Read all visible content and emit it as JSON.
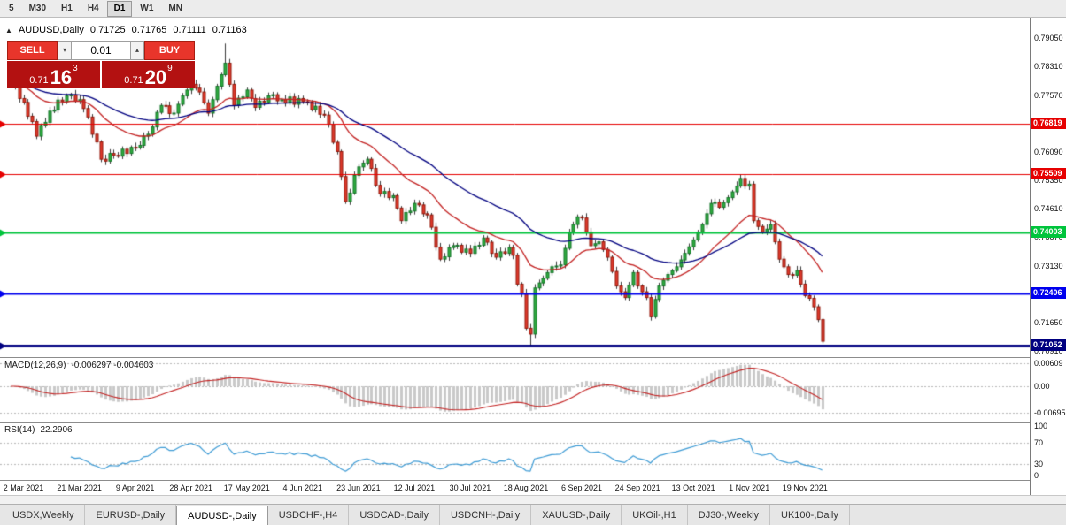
{
  "toolbar": {
    "periods": [
      "5",
      "M30",
      "H1",
      "H4",
      "D1",
      "W1",
      "MN"
    ],
    "active": "D1"
  },
  "chart": {
    "header": {
      "collapse_icon": "▲",
      "symbol": "AUDUSD,Daily",
      "open": "0.71725",
      "high": "0.71765",
      "low": "0.71111",
      "close": "0.71163"
    },
    "trade_panel": {
      "sell_label": "SELL",
      "buy_label": "BUY",
      "volume": "0.01",
      "bid_prefix": "0.71",
      "bid_big": "16",
      "bid_sup": "3",
      "ask_prefix": "0.71",
      "ask_big": "20",
      "ask_sup": "9"
    }
  },
  "chart_data": {
    "type": "candlestick",
    "symbol": "AUDUSD",
    "timeframe": "Daily",
    "ohlc_display": {
      "open": 0.71725,
      "high": 0.71765,
      "low": 0.71111,
      "close": 0.71163
    },
    "price_range": {
      "top": 0.794,
      "bottom": 0.7075
    },
    "price_axis_ticks": [
      "0.79050",
      "0.78310",
      "0.77570",
      "0.76830",
      "0.76090",
      "0.75350",
      "0.74610",
      "0.73870",
      "0.73130",
      "0.72390",
      "0.71650",
      "0.70910"
    ],
    "closes": [
      0.779,
      0.7779,
      0.7748,
      0.7738,
      0.7702,
      0.7688,
      0.765,
      0.7678,
      0.7686,
      0.7715,
      0.7718,
      0.7744,
      0.774,
      0.7755,
      0.7758,
      0.7741,
      0.7745,
      0.7722,
      0.77,
      0.7655,
      0.7635,
      0.759,
      0.7585,
      0.7605,
      0.76,
      0.7598,
      0.7616,
      0.7605,
      0.7621,
      0.762,
      0.7626,
      0.765,
      0.7655,
      0.7674,
      0.7712,
      0.773,
      0.7729,
      0.7709,
      0.771,
      0.7733,
      0.7755,
      0.777,
      0.7785,
      0.7775,
      0.7765,
      0.7737,
      0.771,
      0.7745,
      0.778,
      0.781,
      0.784,
      0.7785,
      0.773,
      0.7749,
      0.7752,
      0.777,
      0.7748,
      0.7725,
      0.7741,
      0.7738,
      0.7755,
      0.7758,
      0.7742,
      0.7745,
      0.7736,
      0.7752,
      0.7733,
      0.7748,
      0.774,
      0.7739,
      0.7719,
      0.7728,
      0.7707,
      0.7705,
      0.7681,
      0.7634,
      0.761,
      0.7545,
      0.748,
      0.7502,
      0.7548,
      0.757,
      0.758,
      0.759,
      0.7566,
      0.7522,
      0.75,
      0.7506,
      0.749,
      0.7495,
      0.7463,
      0.743,
      0.7451,
      0.7455,
      0.7475,
      0.7471,
      0.7448,
      0.7445,
      0.7413,
      0.7361,
      0.733,
      0.7336,
      0.736,
      0.7365,
      0.7366,
      0.7348,
      0.7356,
      0.7345,
      0.7364,
      0.7366,
      0.7385,
      0.7374,
      0.7345,
      0.7335,
      0.7349,
      0.7345,
      0.736,
      0.734,
      0.7265,
      0.724,
      0.715,
      0.7135,
      0.7255,
      0.7268,
      0.728,
      0.7295,
      0.731,
      0.7312,
      0.7315,
      0.7358,
      0.74,
      0.742,
      0.744,
      0.7437,
      0.74,
      0.7365,
      0.737,
      0.7375,
      0.7355,
      0.7335,
      0.7298,
      0.726,
      0.7245,
      0.723,
      0.7262,
      0.7295,
      0.726,
      0.7245,
      0.723,
      0.718,
      0.7225,
      0.726,
      0.7275,
      0.729,
      0.73,
      0.731,
      0.7328,
      0.7345,
      0.7362,
      0.738,
      0.74,
      0.742,
      0.7448,
      0.7475,
      0.7478,
      0.7465,
      0.7477,
      0.749,
      0.7505,
      0.752,
      0.754,
      0.752,
      0.7525,
      0.743,
      0.7415,
      0.74,
      0.7408,
      0.742,
      0.7375,
      0.733,
      0.731,
      0.729,
      0.7288,
      0.73,
      0.7265,
      0.7235,
      0.7228,
      0.7206,
      0.71725,
      0.71163
    ],
    "wick_overrides": {
      "50": [
        0.7891,
        null
      ],
      "121": [
        null,
        0.7106
      ],
      "149": [
        null,
        0.717
      ],
      "189": [
        0.71765,
        0.71111
      ]
    },
    "levels": [
      {
        "price": 0.76819,
        "label": "0.76819",
        "color": "#e60000",
        "width": 1
      },
      {
        "price": 0.75509,
        "label": "0.75509",
        "color": "#e60000",
        "width": 1
      },
      {
        "price": 0.74003,
        "label": "0.74003",
        "color": "#00c43c",
        "width": 2
      },
      {
        "price": 0.72406,
        "label": "0.72406",
        "color": "#0000ee",
        "width": 2
      },
      {
        "price": 0.71052,
        "label": "0.71052",
        "color": "#000080",
        "width": 3
      }
    ],
    "moving_averages": [
      {
        "name": "fast-ma-red",
        "period": 20,
        "color": "#c32222"
      },
      {
        "name": "slow-ma-navy",
        "period": 45,
        "color": "#000080"
      }
    ],
    "macd": {
      "label": "MACD(12,26,9)",
      "values_text": "-0.006297 -0.004603",
      "fast": 12,
      "slow": 26,
      "signal": 9,
      "axis_ticks": [
        "0.00609",
        "0.00",
        "-0.00695"
      ],
      "histogram_color": "#c9c9c9",
      "signal_color": "#c32222"
    },
    "rsi": {
      "label": "RSI(14)",
      "value_text": "22.2906",
      "period": 14,
      "axis_ticks": [
        "100",
        "70",
        "30",
        "0"
      ],
      "levels": [
        70,
        30
      ],
      "color": "#3d9bd5"
    },
    "date_labels": [
      {
        "text": "2 Mar 2021",
        "i": 3
      },
      {
        "text": "21 Mar 2021",
        "i": 16
      },
      {
        "text": "9 Apr 2021",
        "i": 29
      },
      {
        "text": "28 Apr 2021",
        "i": 42
      },
      {
        "text": "17 May 2021",
        "i": 55
      },
      {
        "text": "4 Jun 2021",
        "i": 68
      },
      {
        "text": "23 Jun 2021",
        "i": 81
      },
      {
        "text": "12 Jul 2021",
        "i": 94
      },
      {
        "text": "30 Jul 2021",
        "i": 107
      },
      {
        "text": "18 Aug 2021",
        "i": 120
      },
      {
        "text": "6 Sep 2021",
        "i": 133
      },
      {
        "text": "24 Sep 2021",
        "i": 146
      },
      {
        "text": "13 Oct 2021",
        "i": 159
      },
      {
        "text": "1 Nov 2021",
        "i": 172
      },
      {
        "text": "19 Nov 2021",
        "i": 185
      }
    ],
    "colors": {
      "background": "#ffffff",
      "candle_up": "#2fae3f",
      "candle_up_border": "#15732a",
      "candle_down": "#e23b2c",
      "candle_down_border": "#8f180c",
      "wick": "#3c3c3c"
    }
  },
  "tabs": {
    "items": [
      "USDX,Weekly",
      "EURUSD-,Daily",
      "AUDUSD-,Daily",
      "USDCHF-,H4",
      "USDCAD-,Daily",
      "USDCNH-,Daily",
      "XAUUSD-,Daily",
      "UKOil-,H1",
      "DJ30-,Weekly",
      "UK100-,Daily"
    ],
    "active": "AUDUSD-,Daily"
  }
}
